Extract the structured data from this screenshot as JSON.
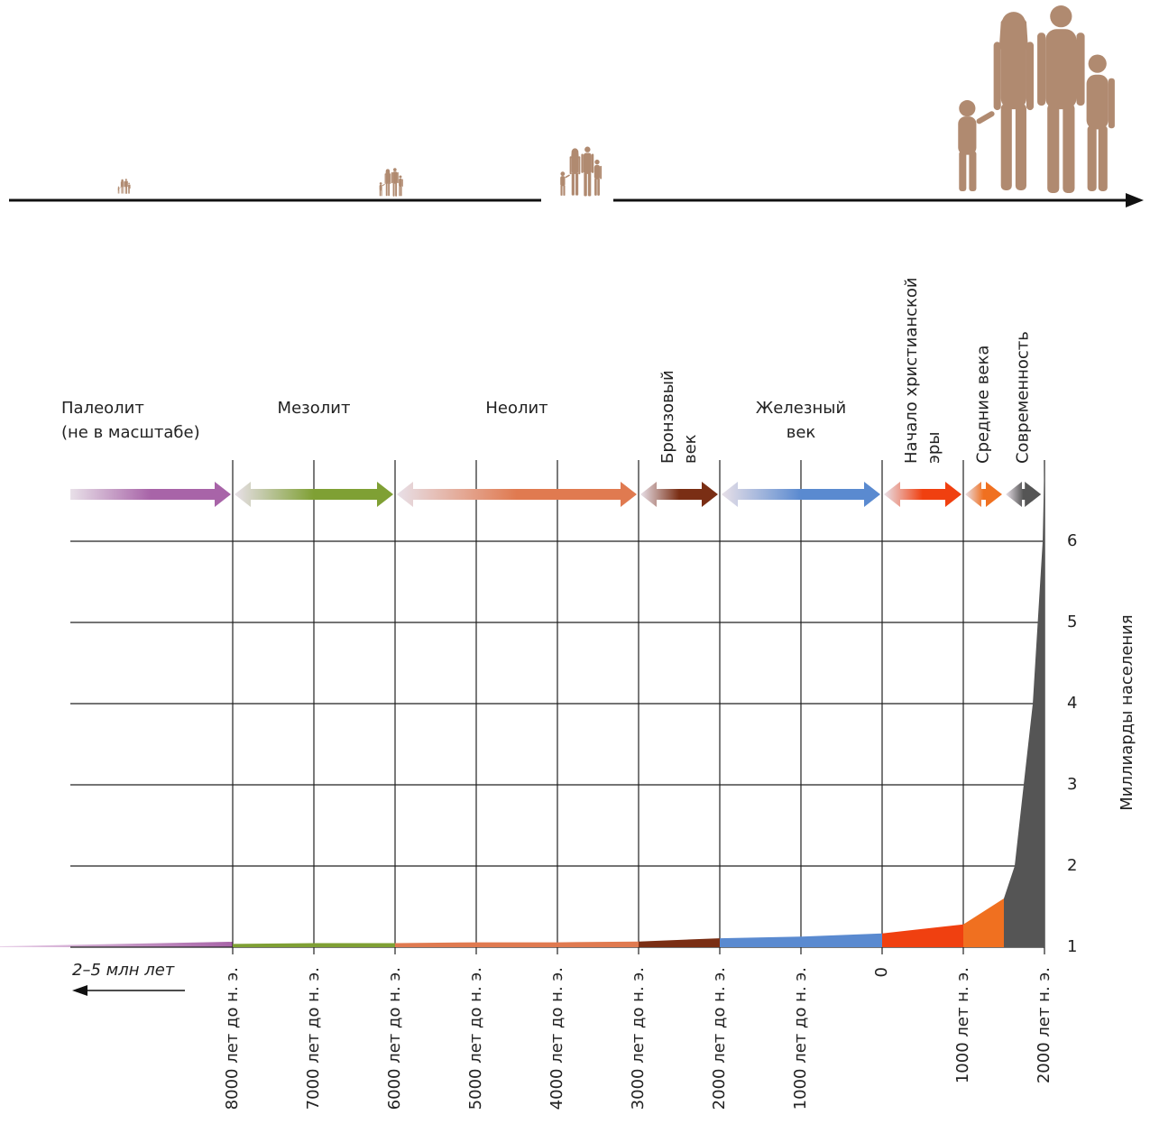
{
  "chart_data": {
    "type": "area",
    "periods": [
      {
        "name": [
          "Палеолит",
          "(не в масштабе)"
        ],
        "end": -8000,
        "color": "#a864a8"
      },
      {
        "name": [
          "Мезолит"
        ],
        "start": -8000,
        "end": -6000,
        "color": "#7fa034"
      },
      {
        "name": [
          "Неолит"
        ],
        "start": -6000,
        "end": -3000,
        "color": "#e07a50"
      },
      {
        "name": [
          "Бронзовый",
          "век"
        ],
        "start": -3000,
        "end": -2000,
        "color": "#7a2e14"
      },
      {
        "name": [
          "Железный",
          "век"
        ],
        "start": -2000,
        "end": 0,
        "color": "#5a8ad0"
      },
      {
        "name": [
          "Начало христианской",
          "эры"
        ],
        "start": 0,
        "end": 1000,
        "color": "#f04010"
      },
      {
        "name": [
          "Средние века"
        ],
        "start": 1000,
        "end": 1500,
        "color": "#f07020"
      },
      {
        "name": [
          "Современность"
        ],
        "start": 1500,
        "end": 1980,
        "color": "#555555"
      }
    ],
    "x": [
      -8000,
      -7000,
      -6000,
      -5000,
      -4000,
      -3000,
      -2000,
      -1000,
      0,
      1000,
      1500,
      1633,
      1744,
      1856,
      1978,
      2000
    ],
    "values": [
      1.04,
      1.05,
      1.05,
      1.06,
      1.06,
      1.07,
      1.11,
      1.13,
      1.17,
      1.28,
      1.6,
      2,
      3,
      4,
      6,
      7
    ],
    "xlim": [
      -8000,
      2000
    ],
    "xticks": [
      {
        "value": -8000,
        "label": "8000 лет до н. э."
      },
      {
        "value": -7000,
        "label": "7000 лет до н. э."
      },
      {
        "value": -6000,
        "label": "6000 лет до н. э."
      },
      {
        "value": -5000,
        "label": "5000 лет до н. э."
      },
      {
        "value": -4000,
        "label": "4000 лет до н. э."
      },
      {
        "value": -3000,
        "label": "3000 лет до н. э."
      },
      {
        "value": -2000,
        "label": "2000 лет до н. э."
      },
      {
        "value": -1000,
        "label": "1000 лет до н. э."
      },
      0,
      {
        "value": 1000,
        "label": "1000 лет н. э."
      },
      {
        "value": 2000,
        "label": "2000 лет н. э."
      }
    ],
    "ylim": [
      1,
      7
    ],
    "yticks": [
      1,
      2,
      3,
      4,
      5,
      6
    ],
    "y_label": "Миллиарды населения",
    "x_note": "2–5 млн лет",
    "grid": true
  }
}
